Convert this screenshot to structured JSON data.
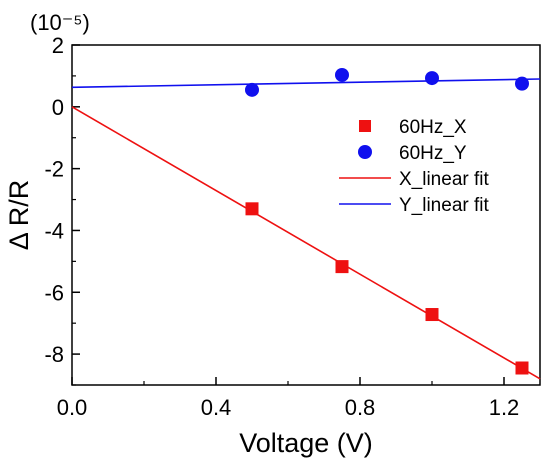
{
  "chart_data": {
    "type": "scatter",
    "xlabel": "Voltage (V)",
    "ylabel": "Δ R/R",
    "y_multiplier": "(10⁻⁵)",
    "xlim": [
      0.0,
      1.3
    ],
    "ylim": [
      -9,
      2
    ],
    "xticks": [
      "0.0",
      "0.4",
      "0.8",
      "1.2"
    ],
    "yticks": [
      "2",
      "0",
      "-2",
      "-4",
      "-6",
      "-8"
    ],
    "grid": false,
    "legend_position": "top-right",
    "series": [
      {
        "name": "60Hz_X",
        "kind": "points",
        "marker": "square",
        "color": "#ee1111",
        "points": [
          {
            "x": 0.5,
            "y": -3.3
          },
          {
            "x": 0.75,
            "y": -5.17
          },
          {
            "x": 1.0,
            "y": -6.72
          },
          {
            "x": 1.25,
            "y": -8.45
          }
        ]
      },
      {
        "name": "60Hz_Y",
        "kind": "points",
        "marker": "circle",
        "color": "#1010ee",
        "points": [
          {
            "x": 0.5,
            "y": 0.55
          },
          {
            "x": 0.75,
            "y": 1.03
          },
          {
            "x": 1.0,
            "y": 0.93
          },
          {
            "x": 1.25,
            "y": 0.75
          }
        ]
      },
      {
        "name": "X_linear fit",
        "kind": "line",
        "color": "#ee1111",
        "points": [
          {
            "x": 0.0,
            "y": 0.0
          },
          {
            "x": 1.3,
            "y": -8.8
          }
        ]
      },
      {
        "name": "Y_linear fit",
        "kind": "line",
        "color": "#1010ee",
        "points": [
          {
            "x": 0.0,
            "y": 0.63
          },
          {
            "x": 1.3,
            "y": 0.9
          }
        ]
      }
    ]
  }
}
